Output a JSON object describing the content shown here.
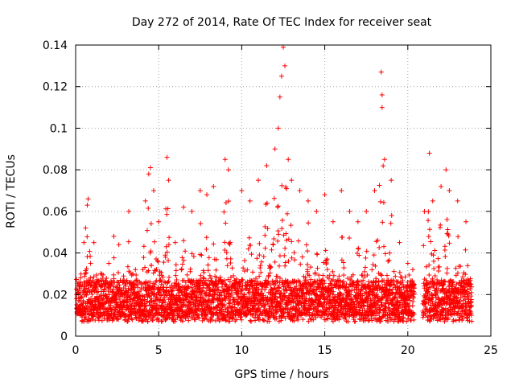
{
  "chart_data": {
    "type": "scatter",
    "title": "Day 272 of 2014, Rate Of TEC Index for receiver seat",
    "xlabel": "GPS time / hours",
    "ylabel": "ROTI / TECUs",
    "xlim": [
      0,
      25
    ],
    "ylim": [
      0,
      0.14
    ],
    "xticks": [
      0,
      5,
      10,
      15,
      20,
      25
    ],
    "yticks": [
      0,
      0.02,
      0.04,
      0.06,
      0.08,
      0.1,
      0.12,
      0.14
    ],
    "xtick_labels": [
      "0",
      "5",
      "10",
      "15",
      "20",
      "25"
    ],
    "ytick_labels": [
      "0",
      "0.02",
      "0.04",
      "0.06",
      "0.08",
      "0.1",
      "0.12",
      "0.14"
    ],
    "grid": true,
    "marker": "+",
    "color": "#ff0000",
    "data_gap_hours": [
      20.4,
      20.9
    ],
    "series": [
      {
        "name": "ROTI",
        "points": [
          [
            0.1,
            0.015
          ],
          [
            0.3,
            0.028
          ],
          [
            0.5,
            0.045
          ],
          [
            0.6,
            0.052
          ],
          [
            0.7,
            0.063
          ],
          [
            0.75,
            0.066
          ],
          [
            0.9,
            0.035
          ],
          [
            1.1,
            0.045
          ],
          [
            1.5,
            0.03
          ],
          [
            2.0,
            0.035
          ],
          [
            2.3,
            0.048
          ],
          [
            2.6,
            0.044
          ],
          [
            3.2,
            0.06
          ],
          [
            3.6,
            0.032
          ],
          [
            4.2,
            0.065
          ],
          [
            4.4,
            0.078
          ],
          [
            4.5,
            0.081
          ],
          [
            4.7,
            0.07
          ],
          [
            5.0,
            0.055
          ],
          [
            5.5,
            0.086
          ],
          [
            5.6,
            0.075
          ],
          [
            6.0,
            0.045
          ],
          [
            6.5,
            0.062
          ],
          [
            7.0,
            0.06
          ],
          [
            7.5,
            0.07
          ],
          [
            7.9,
            0.068
          ],
          [
            8.3,
            0.072
          ],
          [
            9.0,
            0.085
          ],
          [
            9.2,
            0.08
          ],
          [
            10.0,
            0.07
          ],
          [
            10.5,
            0.065
          ],
          [
            11.0,
            0.075
          ],
          [
            11.5,
            0.082
          ],
          [
            12.0,
            0.09
          ],
          [
            12.2,
            0.1
          ],
          [
            12.3,
            0.115
          ],
          [
            12.4,
            0.125
          ],
          [
            12.5,
            0.139
          ],
          [
            12.6,
            0.13
          ],
          [
            12.8,
            0.085
          ],
          [
            13.0,
            0.075
          ],
          [
            13.5,
            0.07
          ],
          [
            14.0,
            0.065
          ],
          [
            14.5,
            0.06
          ],
          [
            15.0,
            0.068
          ],
          [
            15.5,
            0.055
          ],
          [
            16.0,
            0.07
          ],
          [
            16.5,
            0.06
          ],
          [
            17.0,
            0.055
          ],
          [
            17.5,
            0.06
          ],
          [
            18.0,
            0.07
          ],
          [
            18.4,
            0.127
          ],
          [
            18.45,
            0.116
          ],
          [
            18.45,
            0.11
          ],
          [
            18.6,
            0.085
          ],
          [
            19.0,
            0.075
          ],
          [
            19.5,
            0.045
          ],
          [
            20.0,
            0.035
          ],
          [
            20.3,
            0.032
          ],
          [
            21.0,
            0.06
          ],
          [
            21.3,
            0.088
          ],
          [
            21.5,
            0.065
          ],
          [
            22.0,
            0.072
          ],
          [
            22.3,
            0.08
          ],
          [
            22.5,
            0.07
          ],
          [
            23.0,
            0.065
          ],
          [
            23.5,
            0.055
          ],
          [
            23.8,
            0.025
          ]
        ]
      }
    ]
  }
}
